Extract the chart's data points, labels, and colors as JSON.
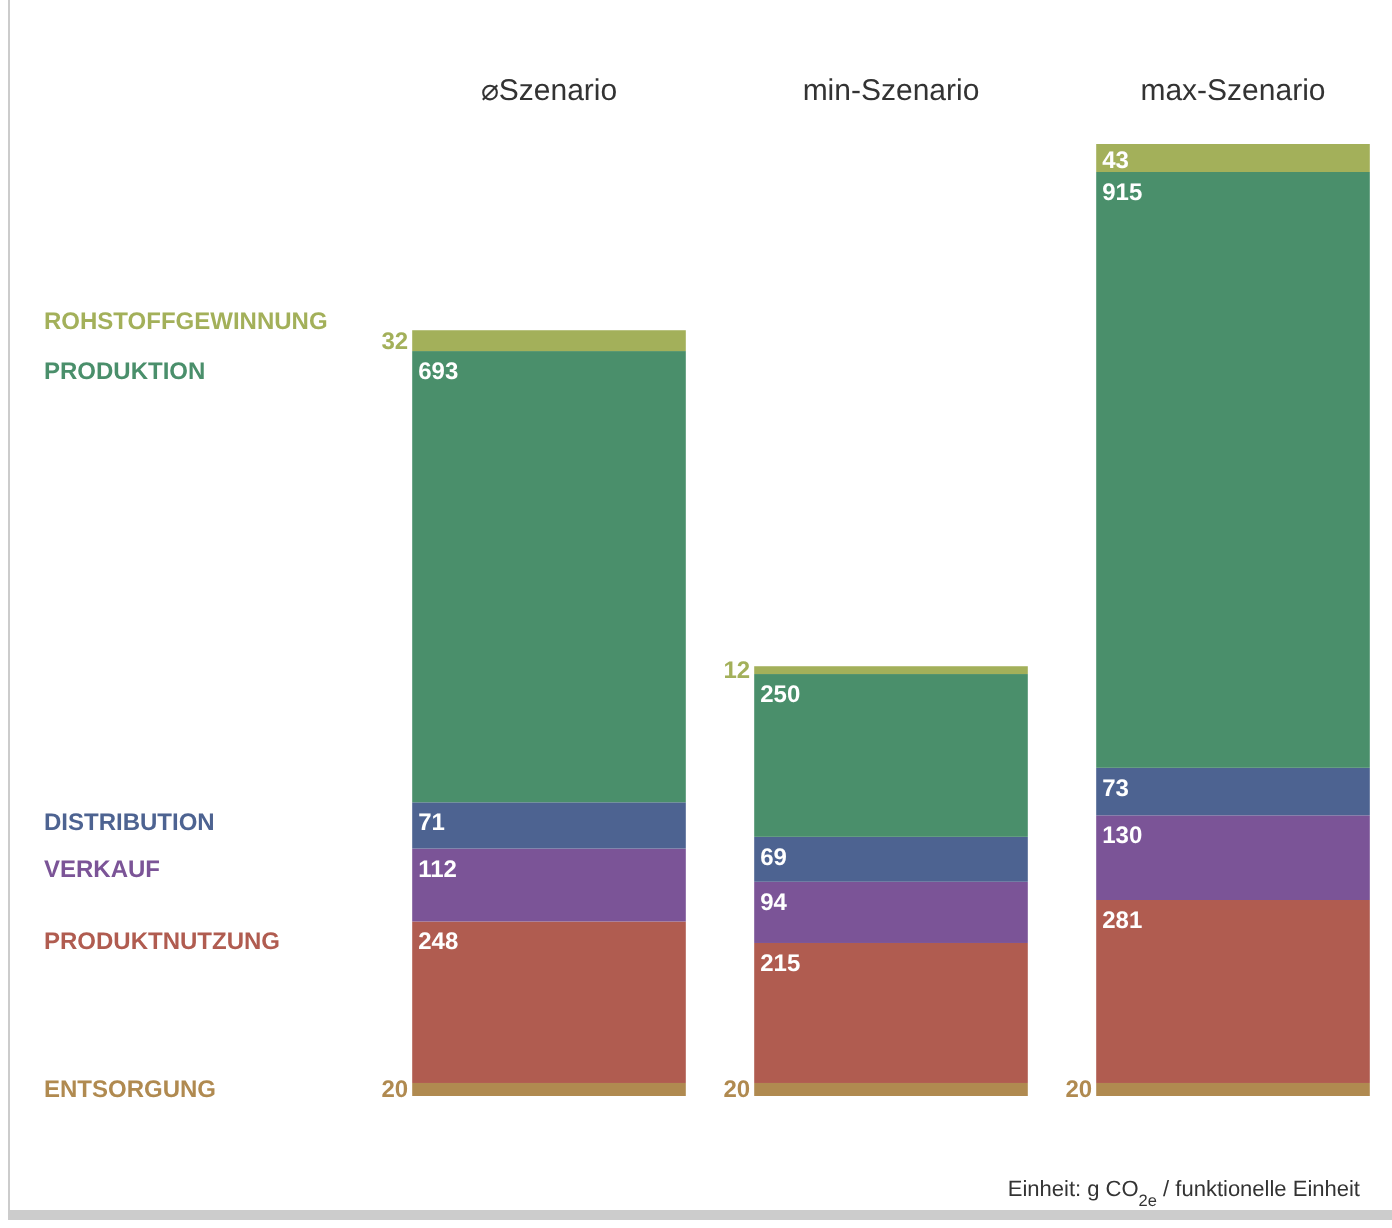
{
  "chart_data": {
    "type": "bar",
    "stacked": true,
    "categories": [
      "⌀Szenario",
      "min-Szenario",
      "max-Szenario"
    ],
    "series": [
      {
        "name": "ENTSORGUNG",
        "color": "#b08a50",
        "values": [
          20,
          20,
          20
        ]
      },
      {
        "name": "PRODUKTNUTZUNG",
        "color": "#b05c50",
        "values": [
          248,
          215,
          281
        ]
      },
      {
        "name": "VERKAUF",
        "color": "#7b5497",
        "values": [
          112,
          94,
          130
        ]
      },
      {
        "name": "DISTRIBUTION",
        "color": "#4d6391",
        "values": [
          71,
          69,
          73
        ]
      },
      {
        "name": "PRODUKTION",
        "color": "#4a8f6b",
        "values": [
          693,
          250,
          915
        ]
      },
      {
        "name": "ROHSTOFFGEWINNUNG",
        "color": "#a3b05a",
        "values": [
          32,
          12,
          43
        ]
      }
    ],
    "data_labels": true,
    "legend": "left",
    "annotations": [
      "Einheit: g CO$_{2e}$ / funktionelle Einheit"
    ]
  }
}
